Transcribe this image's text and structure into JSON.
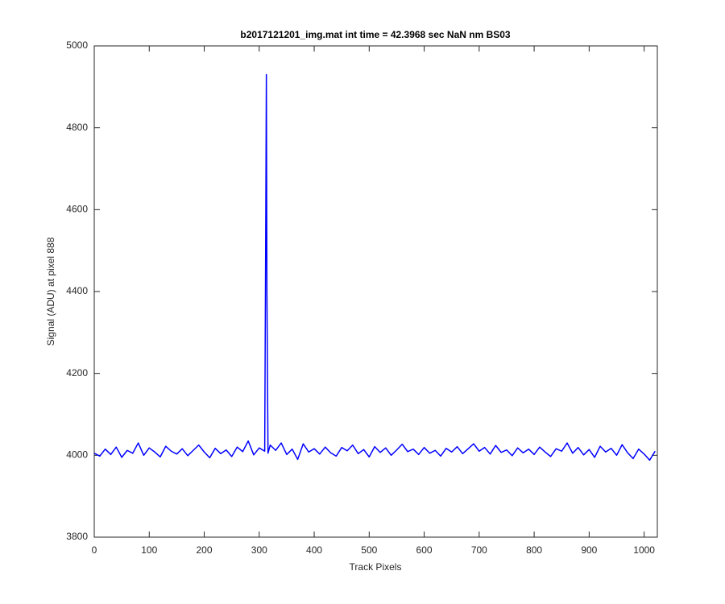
{
  "chart_data": {
    "type": "line",
    "title": "b2017121201_img.mat int time = 42.3968 sec  NaN nm BS03",
    "x_label": "Track Pixels",
    "y_label": "Signal (ADU) at pixel 888",
    "xlim": [
      0,
      1024
    ],
    "ylim": [
      3800,
      5000
    ],
    "xticks": [
      0,
      100,
      200,
      300,
      400,
      500,
      600,
      700,
      800,
      900,
      1000
    ],
    "yticks": [
      3800,
      4000,
      4200,
      4400,
      4600,
      4800,
      5000
    ],
    "grid": false,
    "series": [
      {
        "name": "signal",
        "color": "#0000ff",
        "x": [
          0,
          10,
          20,
          30,
          40,
          50,
          60,
          70,
          80,
          90,
          100,
          110,
          120,
          130,
          140,
          150,
          160,
          170,
          180,
          190,
          200,
          210,
          220,
          230,
          240,
          250,
          260,
          270,
          280,
          290,
          300,
          310,
          312,
          313,
          314,
          316,
          320,
          330,
          340,
          350,
          360,
          370,
          380,
          390,
          400,
          410,
          420,
          430,
          440,
          450,
          460,
          470,
          480,
          490,
          500,
          510,
          520,
          530,
          540,
          550,
          560,
          570,
          580,
          590,
          600,
          610,
          620,
          630,
          640,
          650,
          660,
          670,
          680,
          690,
          700,
          710,
          720,
          730,
          740,
          750,
          760,
          770,
          780,
          790,
          800,
          810,
          820,
          830,
          840,
          850,
          860,
          870,
          880,
          890,
          900,
          910,
          920,
          930,
          940,
          950,
          960,
          970,
          980,
          990,
          1000,
          1010,
          1020
        ],
        "values": [
          4005,
          3998,
          4015,
          4002,
          4020,
          3995,
          4012,
          4005,
          4030,
          4000,
          4018,
          4008,
          3996,
          4022,
          4010,
          4003,
          4016,
          3999,
          4012,
          4025,
          4008,
          3994,
          4017,
          4004,
          4013,
          3997,
          4020,
          4009,
          4035,
          4001,
          4018,
          4010,
          4600,
          4930,
          4400,
          4005,
          4025,
          4012,
          4030,
          4002,
          4015,
          3990,
          4028,
          4008,
          4016,
          4003,
          4020,
          4006,
          3998,
          4019,
          4011,
          4025,
          4004,
          4014,
          3996,
          4021,
          4007,
          4018,
          4000,
          4013,
          4027,
          4009,
          4015,
          4002,
          4019,
          4005,
          4012,
          3998,
          4017,
          4008,
          4021,
          4004,
          4016,
          4028,
          4010,
          4019,
          4003,
          4024,
          4007,
          4013,
          3999,
          4018,
          4006,
          4015,
          4002,
          4020,
          4008,
          3997,
          4016,
          4010,
          4030,
          4005,
          4019,
          4001,
          4014,
          3995,
          4022,
          4008,
          4017,
          4000,
          4026,
          4006,
          3992,
          4015,
          4003,
          3988,
          4010
        ]
      }
    ]
  }
}
